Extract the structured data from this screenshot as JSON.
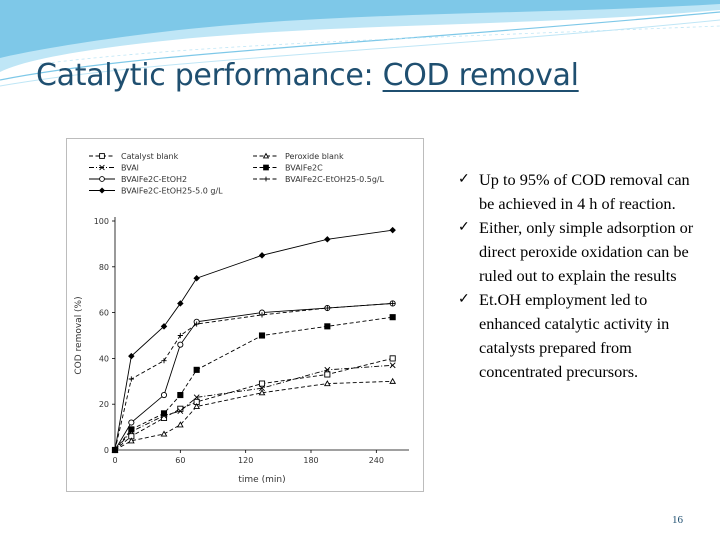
{
  "slide": {
    "title_plain": "Catalytic performance: ",
    "title_underlined": "COD removal",
    "page_number": "16",
    "bullets": [
      "Up to 95% of COD removal can be achieved in 4 h of reaction.",
      "Either, only simple adsorption or direct peroxide oxidation can be ruled out to explain the results",
      "Et.OH employment led to enhanced catalytic activity in catalysts prepared from concentrated precursors."
    ],
    "check_glyph": "✓",
    "colors": {
      "title": "#1f4f70",
      "swoosh": "#7ec8e8",
      "series": "#000000"
    }
  },
  "chart_data": {
    "type": "line",
    "xlabel": "time (min)",
    "ylabel": "COD removal (%)",
    "xlim": [
      0,
      270
    ],
    "ylim": [
      0,
      100
    ],
    "xticks": [
      0,
      60,
      120,
      180,
      240
    ],
    "yticks": [
      0,
      20,
      40,
      60,
      80,
      100
    ],
    "grid": false,
    "legend_position": "top",
    "series": [
      {
        "name": "Catalyst blank",
        "marker": "open-square",
        "dash": "dashed",
        "x": [
          0,
          15,
          45,
          60,
          75,
          135,
          195,
          255
        ],
        "y": [
          0,
          6,
          14,
          18,
          21,
          29,
          33,
          40
        ]
      },
      {
        "name": "Peroxide blank",
        "marker": "open-triangle",
        "dash": "dashed",
        "x": [
          0,
          15,
          45,
          60,
          75,
          135,
          195,
          255
        ],
        "y": [
          0,
          4,
          7,
          11,
          19,
          25,
          29,
          30
        ]
      },
      {
        "name": "BVAl",
        "marker": "x",
        "dash": "dash-dot",
        "x": [
          0,
          15,
          45,
          60,
          75,
          135,
          195,
          255
        ],
        "y": [
          0,
          8,
          15,
          17,
          23,
          27,
          35,
          37
        ]
      },
      {
        "name": "BVAlFe2C",
        "marker": "filled-square",
        "dash": "dashed",
        "x": [
          0,
          15,
          45,
          60,
          75,
          135,
          195,
          255
        ],
        "y": [
          0,
          9,
          16,
          24,
          35,
          50,
          54,
          58
        ]
      },
      {
        "name": "BVAlFe2C-EtOH2",
        "marker": "open-circle",
        "dash": "solid",
        "x": [
          0,
          15,
          45,
          60,
          75,
          135,
          195,
          255
        ],
        "y": [
          0,
          12,
          24,
          46,
          56,
          60,
          62,
          64
        ]
      },
      {
        "name": "BVAlFe2C-EtOH25-0.5g/L",
        "marker": "plus",
        "dash": "dashed",
        "x": [
          0,
          15,
          45,
          60,
          75,
          135,
          195,
          255
        ],
        "y": [
          0,
          31,
          39,
          50,
          55,
          59,
          62,
          64
        ]
      },
      {
        "name": "BVAlFe2C-EtOH25-5.0 g/L",
        "marker": "filled-diamond",
        "dash": "solid",
        "x": [
          0,
          15,
          45,
          60,
          75,
          135,
          195,
          255
        ],
        "y": [
          0,
          41,
          54,
          64,
          75,
          85,
          92,
          96
        ]
      }
    ]
  }
}
